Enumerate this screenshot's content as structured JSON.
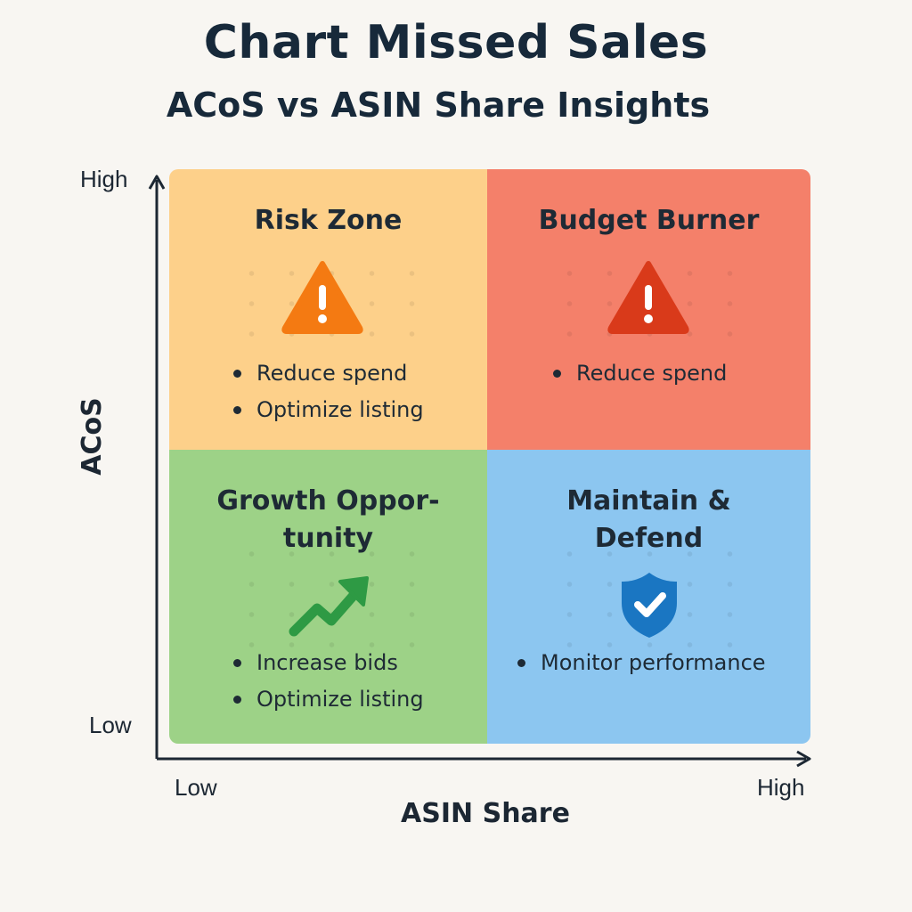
{
  "header": {
    "title": "Chart Missed Sales",
    "subtitle": "ACoS vs ASIN Share Insights"
  },
  "axes": {
    "y": {
      "title": "ACoS",
      "high_label": "High",
      "low_label": "Low"
    },
    "x": {
      "title": "ASIN Share",
      "low_label": "Low",
      "high_label": "High"
    }
  },
  "quadrants": {
    "risk_zone": {
      "title": "Risk Zone",
      "icon": "warning-icon",
      "color": "#fdd08a",
      "icon_color": "#f47a12",
      "actions": [
        "Reduce spend",
        "Optimize listing"
      ]
    },
    "budget_burner": {
      "title": "Budget Burner",
      "icon": "warning-icon",
      "color": "#f4806a",
      "icon_color": "#d93a1a",
      "actions": [
        "Reduce spend"
      ]
    },
    "growth_opportunity": {
      "title_line1": "Growth Oppor-",
      "title_line2": "tunity",
      "icon": "trending-up-icon",
      "color": "#9dd287",
      "icon_color": "#2e9a44",
      "actions": [
        "Increase bids",
        "Optimize listing"
      ]
    },
    "maintain_defend": {
      "title_line1": "Maintain &",
      "title_line2": "Defend",
      "icon": "shield-check-icon",
      "color": "#8cc6f0",
      "icon_color": "#1a76c2",
      "actions": [
        "Monitor performance"
      ]
    }
  }
}
